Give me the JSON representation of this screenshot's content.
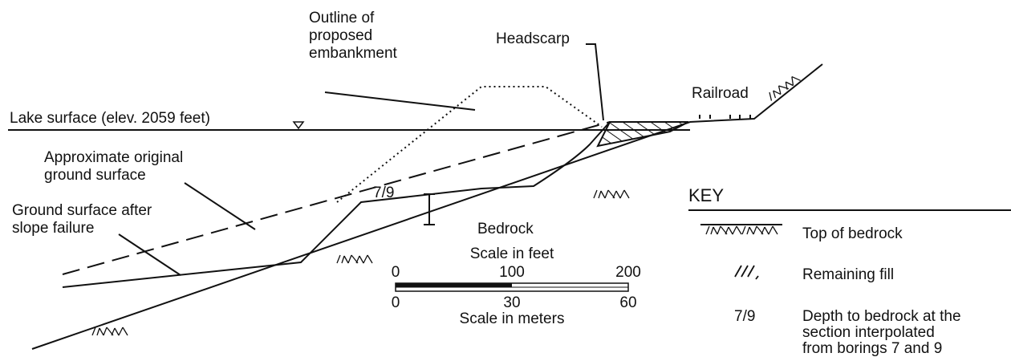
{
  "labels": {
    "embankment": [
      "Outline of",
      "proposed",
      "embankment"
    ],
    "headscarp": "Headscarp",
    "railroad": "Railroad",
    "lake": "Lake surface (elev. 2059 feet)",
    "original_ground": [
      "Approximate original",
      "ground surface"
    ],
    "ground_after": [
      "Ground surface after",
      "slope failure"
    ],
    "boring": "7/9",
    "bedrock": "Bedrock"
  },
  "scale": {
    "feet_title": "Scale in feet",
    "feet_ticks": [
      "0",
      "100",
      "200"
    ],
    "meters_ticks": [
      "0",
      "30",
      "60"
    ],
    "meters_title": "Scale in meters"
  },
  "key": {
    "title": "KEY",
    "items": [
      {
        "label": [
          "Top of bedrock"
        ]
      },
      {
        "label": [
          "Remaining fill"
        ]
      },
      {
        "symbol": "7/9",
        "label": [
          "Depth to bedrock at the",
          "section interpolated",
          "from borings 7 and 9"
        ]
      }
    ]
  }
}
